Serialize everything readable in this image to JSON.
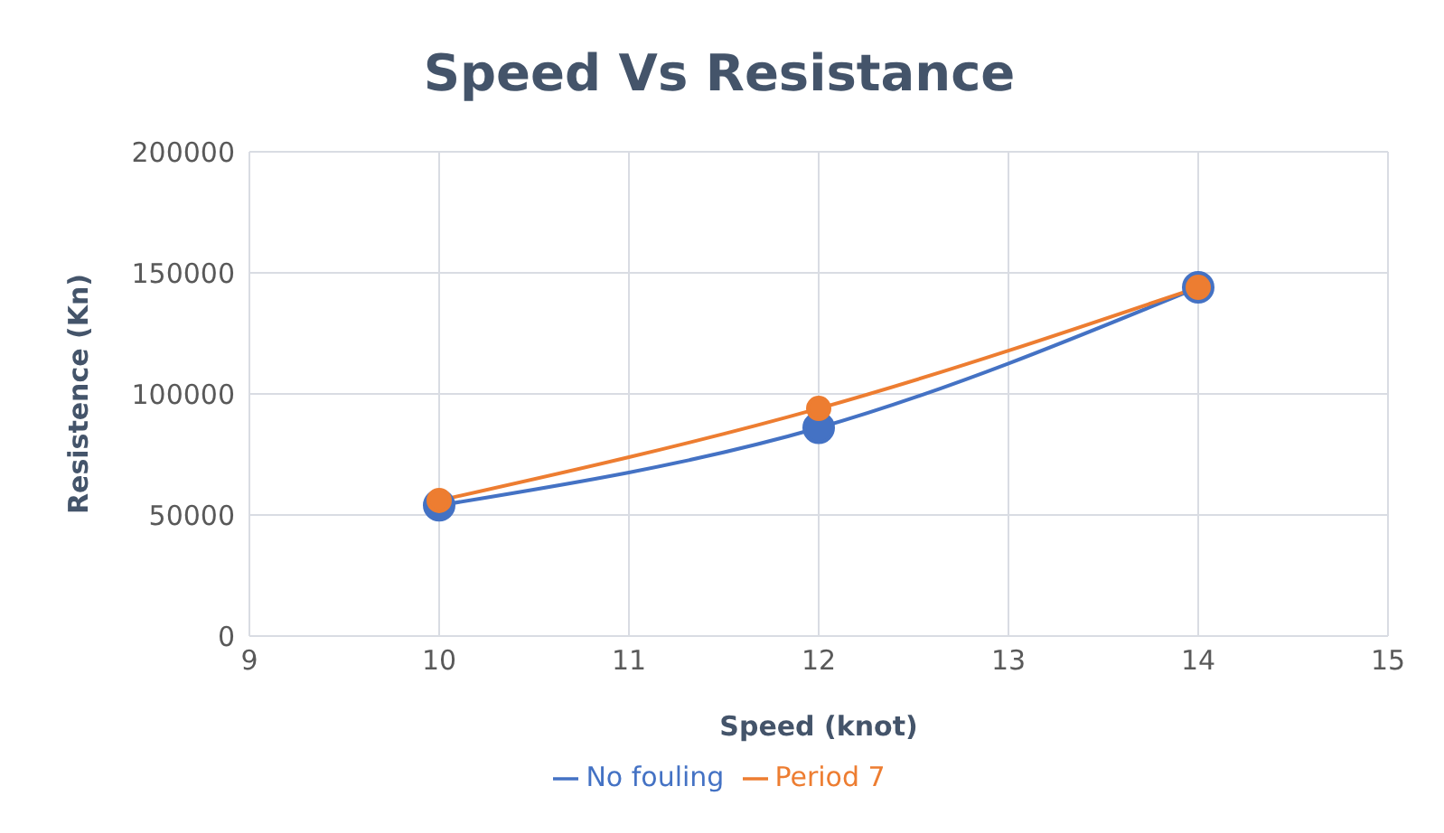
{
  "chart_data": {
    "type": "line",
    "title": "Speed Vs Resistance",
    "xlabel": "Speed (knot)",
    "ylabel": "Resistence (Kn)",
    "x": [
      10,
      12,
      14
    ],
    "series": [
      {
        "name": "No fouling",
        "color": "#4472c4",
        "values": [
          54000,
          86000,
          144000
        ]
      },
      {
        "name": "Period 7",
        "color": "#ed7d31",
        "values": [
          56000,
          94000,
          144000
        ]
      }
    ],
    "xlim": [
      9,
      15
    ],
    "xticks": [
      9,
      10,
      11,
      12,
      13,
      14,
      15
    ],
    "ylim": [
      0,
      200000
    ],
    "yticks": [
      0,
      50000,
      100000,
      150000,
      200000
    ],
    "grid": true,
    "legend": "bottom",
    "marker": "circle",
    "line_style": "solid"
  }
}
